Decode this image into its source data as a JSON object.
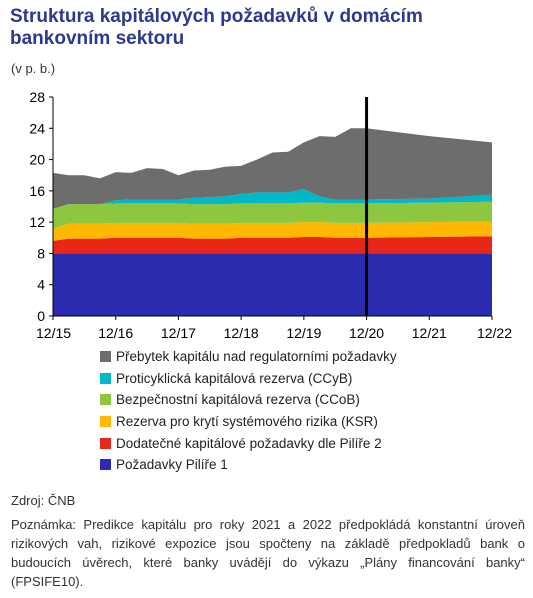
{
  "header": {
    "title": "Struktura kapitálových požadavků v domácím bankovním sektoru",
    "unit": "(v p. b.)"
  },
  "footer": {
    "source": "Zdroj: ČNB",
    "note": "Poznámka: Predikce kapitálu pro roky 2021 a 2022 předpokládá konstantní úroveň rizikových vah, rizikové expozice jsou spočteny na základě předpokladů bank o budoucích úvěrech, které banky uvádějí do výkazu „Plány financování banky“ (FPSIFE10)."
  },
  "chart_data": {
    "type": "area",
    "stacked": true,
    "title": "Struktura kapitálových požadavků v domácím bankovním sektoru",
    "ylabel": "(v p. b.)",
    "ylim": [
      0,
      28
    ],
    "yticks": [
      0,
      4,
      8,
      12,
      16,
      20,
      24,
      28
    ],
    "xticks": [
      "12/15",
      "12/16",
      "12/17",
      "12/18",
      "12/19",
      "12/20",
      "12/21",
      "12/22"
    ],
    "x": [
      "12/15",
      "3/16",
      "6/16",
      "9/16",
      "12/16",
      "3/17",
      "6/17",
      "9/17",
      "12/17",
      "3/18",
      "6/18",
      "9/18",
      "12/18",
      "3/19",
      "6/19",
      "9/19",
      "12/19",
      "3/20",
      "6/20",
      "9/20",
      "12/20",
      "12/21",
      "12/22"
    ],
    "vertical_marker": "12/20",
    "legend_position": "bottom",
    "grid": false,
    "series": [
      {
        "name": "Požadavky Pilíře 1",
        "color": "#2b2bb0",
        "values": [
          8,
          8,
          8,
          8,
          8,
          8,
          8,
          8,
          8,
          8,
          8,
          8,
          8,
          8,
          8,
          8,
          8,
          8,
          8,
          8,
          8,
          8,
          8
        ]
      },
      {
        "name": "Dodatečné kapitálové požadavky dle Pilíře 2",
        "color": "#e8271a",
        "values": [
          1.6,
          1.9,
          1.9,
          1.9,
          2.0,
          2.0,
          2.0,
          2.0,
          2.0,
          1.9,
          1.9,
          1.9,
          2.0,
          2.0,
          2.0,
          2.0,
          2.1,
          2.1,
          2.0,
          2.0,
          2.0,
          2.1,
          2.2
        ]
      },
      {
        "name": "Rezerva pro krytí systémového rizika (KSR)",
        "color": "#ffb800",
        "values": [
          1.6,
          1.9,
          1.9,
          1.9,
          1.9,
          1.9,
          1.9,
          1.9,
          1.9,
          1.9,
          1.9,
          1.9,
          1.9,
          1.9,
          1.9,
          1.9,
          1.9,
          1.9,
          1.9,
          1.9,
          1.9,
          1.9,
          1.9
        ]
      },
      {
        "name": "Bezpečnostní kapitálová rezerva (CCoB)",
        "color": "#8dc63f",
        "values": [
          2.5,
          2.5,
          2.5,
          2.5,
          2.5,
          2.5,
          2.5,
          2.5,
          2.5,
          2.5,
          2.5,
          2.5,
          2.5,
          2.5,
          2.5,
          2.5,
          2.5,
          2.5,
          2.5,
          2.5,
          2.5,
          2.5,
          2.5
        ]
      },
      {
        "name": "Proticyklická kapitálová rezerva (CCyB)",
        "color": "#00b9c8",
        "values": [
          0,
          0,
          0,
          0,
          0.4,
          0.5,
          0.5,
          0.5,
          0.5,
          0.8,
          0.9,
          1.0,
          1.2,
          1.4,
          1.4,
          1.4,
          1.7,
          0.8,
          0.5,
          0.5,
          0.5,
          0.5,
          0.9
        ]
      },
      {
        "name": "Přebytek kapitálu nad regulatorními požadavky",
        "color": "#6d6d6d",
        "values": [
          4.6,
          3.7,
          3.7,
          3.3,
          3.6,
          3.4,
          4.0,
          3.9,
          3.1,
          3.5,
          3.5,
          3.8,
          3.6,
          4.2,
          5.1,
          5.2,
          6.0,
          7.7,
          8.0,
          9.1,
          9.1,
          8.0,
          6.7
        ]
      }
    ]
  }
}
